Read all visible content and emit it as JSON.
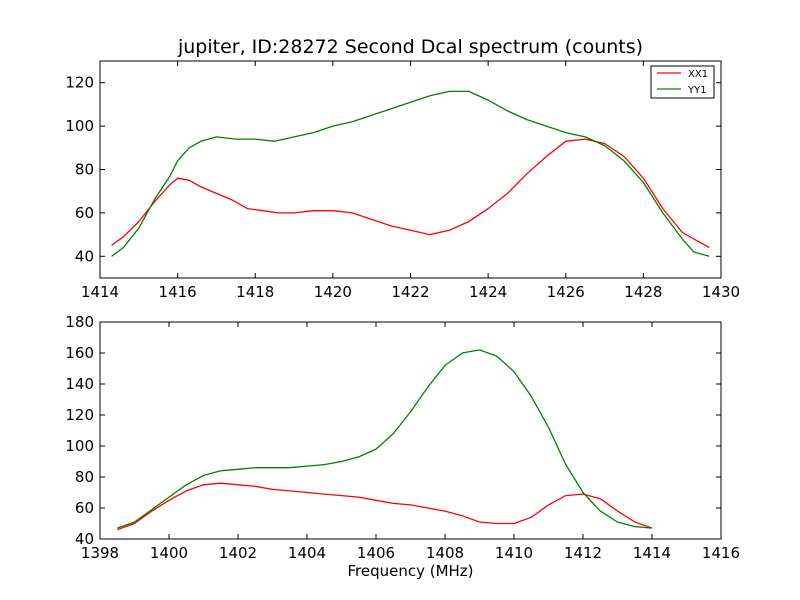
{
  "chart_data": [
    {
      "type": "line",
      "title": "jupiter, ID:28272 Second Dcal spectrum (counts)",
      "xlabel": "",
      "ylabel": "",
      "xlim": [
        1414,
        1430
      ],
      "ylim": [
        30,
        130
      ],
      "xticks": [
        1414,
        1416,
        1418,
        1420,
        1422,
        1424,
        1426,
        1428,
        1430
      ],
      "yticks": [
        40,
        60,
        80,
        100,
        120
      ],
      "grid": false,
      "legend": {
        "placement": "top-right",
        "entries": [
          "XX1",
          "YY1"
        ]
      },
      "series": [
        {
          "name": "XX1",
          "color": "#ff0000",
          "x": [
            1414.3,
            1414.6,
            1415.0,
            1415.4,
            1415.8,
            1416.0,
            1416.3,
            1416.6,
            1417.0,
            1417.4,
            1417.8,
            1418.2,
            1418.6,
            1419.0,
            1419.5,
            1420.0,
            1420.5,
            1421.0,
            1421.5,
            1422.0,
            1422.5,
            1423.0,
            1423.5,
            1424.0,
            1424.5,
            1425.0,
            1425.5,
            1426.0,
            1426.5,
            1427.0,
            1427.5,
            1428.0,
            1428.5,
            1429.0,
            1429.5,
            1429.7
          ],
          "y": [
            45,
            49,
            56,
            65,
            73,
            76,
            75,
            72,
            69,
            66,
            62,
            61,
            60,
            60,
            61,
            61,
            60,
            57,
            54,
            52,
            50,
            52,
            56,
            62,
            69,
            78,
            86,
            93,
            94,
            92,
            86,
            76,
            62,
            51,
            46,
            44
          ]
        },
        {
          "name": "YY1",
          "color": "#008000",
          "x": [
            1414.3,
            1414.6,
            1415.0,
            1415.4,
            1415.8,
            1416.0,
            1416.3,
            1416.6,
            1417.0,
            1417.5,
            1418.0,
            1418.5,
            1419.0,
            1419.5,
            1420.0,
            1420.5,
            1421.0,
            1421.5,
            1422.0,
            1422.5,
            1423.0,
            1423.5,
            1424.0,
            1424.5,
            1425.0,
            1425.5,
            1426.0,
            1426.5,
            1427.0,
            1427.5,
            1428.0,
            1428.5,
            1429.0,
            1429.3,
            1429.7
          ],
          "y": [
            40,
            44,
            53,
            66,
            77,
            84,
            90,
            93,
            95,
            94,
            94,
            93,
            95,
            97,
            100,
            102,
            105,
            108,
            111,
            114,
            116,
            116,
            112,
            107,
            103,
            100,
            97,
            95,
            91,
            84,
            74,
            60,
            48,
            42,
            40
          ]
        }
      ]
    },
    {
      "type": "line",
      "title": "",
      "xlabel": "Frequency (MHz)",
      "ylabel": "",
      "xlim": [
        1398,
        1416
      ],
      "ylim": [
        40,
        180
      ],
      "xticks": [
        1398,
        1400,
        1402,
        1404,
        1406,
        1408,
        1410,
        1412,
        1414,
        1416
      ],
      "yticks": [
        40,
        60,
        80,
        100,
        120,
        140,
        160,
        180
      ],
      "grid": false,
      "series": [
        {
          "color": "#ff0000",
          "x": [
            1398.5,
            1399.0,
            1399.5,
            1400.0,
            1400.5,
            1401.0,
            1401.5,
            1402.0,
            1402.5,
            1403.0,
            1403.5,
            1404.0,
            1404.5,
            1405.0,
            1405.5,
            1406.0,
            1406.5,
            1407.0,
            1407.5,
            1408.0,
            1408.5,
            1409.0,
            1409.5,
            1410.0,
            1410.5,
            1411.0,
            1411.5,
            1412.0,
            1412.5,
            1413.0,
            1413.5,
            1414.0
          ],
          "y": [
            46,
            50,
            58,
            65,
            71,
            75,
            76,
            75,
            74,
            72,
            71,
            70,
            69,
            68,
            67,
            65,
            63,
            62,
            60,
            58,
            55,
            51,
            50,
            50,
            54,
            62,
            68,
            69,
            66,
            58,
            51,
            47
          ]
        },
        {
          "color": "#008000",
          "x": [
            1398.5,
            1399.0,
            1399.5,
            1400.0,
            1400.5,
            1401.0,
            1401.5,
            1402.0,
            1402.5,
            1403.0,
            1403.5,
            1404.0,
            1404.5,
            1405.0,
            1405.5,
            1406.0,
            1406.5,
            1407.0,
            1407.5,
            1408.0,
            1408.5,
            1409.0,
            1409.5,
            1410.0,
            1410.5,
            1411.0,
            1411.5,
            1412.0,
            1412.5,
            1413.0,
            1413.5,
            1414.0
          ],
          "y": [
            47,
            51,
            59,
            67,
            75,
            81,
            84,
            85,
            86,
            86,
            86,
            87,
            88,
            90,
            93,
            98,
            108,
            122,
            138,
            152,
            160,
            162,
            158,
            148,
            132,
            112,
            88,
            70,
            58,
            51,
            48,
            47
          ]
        }
      ]
    }
  ]
}
